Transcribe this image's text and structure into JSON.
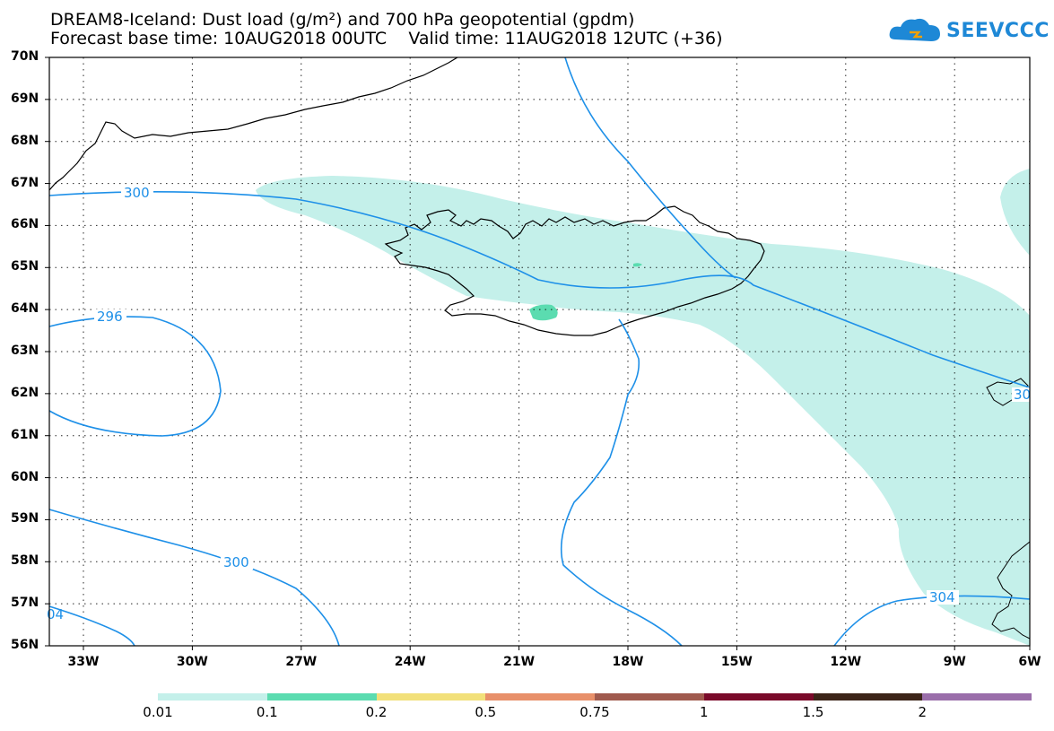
{
  "title": {
    "line1": "DREAM8-Iceland: Dust load (g/m²) and 700 hPa geopotential (gpdm)",
    "line2": "Forecast base time: 10AUG2018 00UTC    Valid time: 11AUG2018 12UTC (+36)"
  },
  "logo": {
    "text": "SEEVCCC",
    "icon": "cloud-logo-icon"
  },
  "map": {
    "lat_labels": [
      "70N",
      "69N",
      "68N",
      "67N",
      "66N",
      "65N",
      "64N",
      "63N",
      "62N",
      "61N",
      "60N",
      "59N",
      "58N",
      "57N",
      "56N"
    ],
    "lon_labels": [
      "33W",
      "30W",
      "27W",
      "24W",
      "21W",
      "18W",
      "15W",
      "12W",
      "9W",
      "6W"
    ],
    "contour_labels": [
      "300",
      "296",
      "300",
      "304",
      "04",
      "30"
    ]
  },
  "colorbar": {
    "colors": [
      "#c4f0ea",
      "#5bdcb0",
      "#f2e07a",
      "#e8906a",
      "#a05a4e",
      "#7a0a2a",
      "#3c2418",
      "#9a6eaa"
    ],
    "labels": [
      "0.01",
      "0.1",
      "0.2",
      "0.5",
      "0.75",
      "1",
      "1.5",
      "2"
    ]
  },
  "style": {
    "dust_fill": "#c4f0ea",
    "dust_fill_dark": "#5bdcb0",
    "contour_color": "#1e90e8"
  }
}
